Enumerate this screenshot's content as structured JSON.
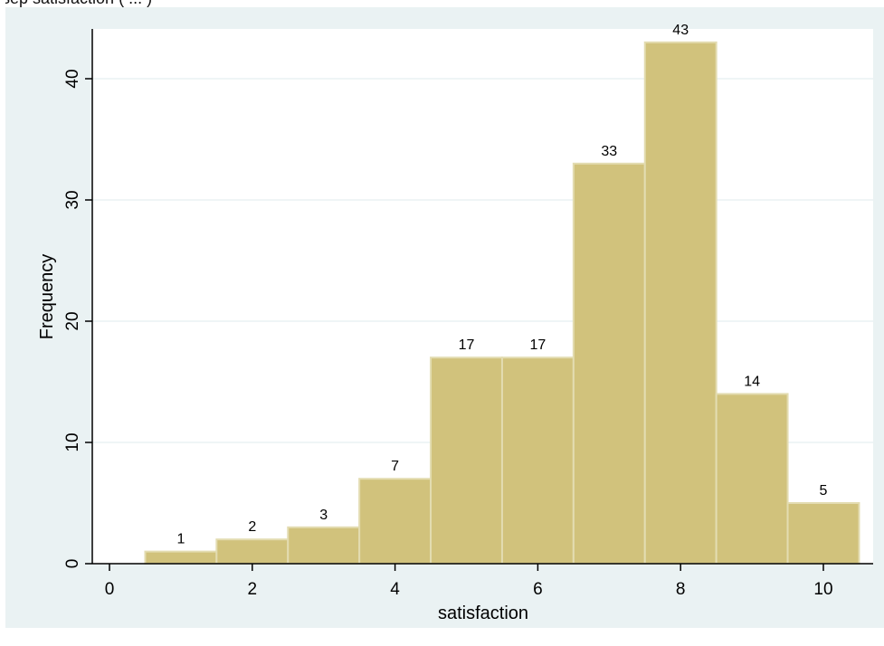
{
  "header_fragment": "sep   satisfaction (  ...  )",
  "chart_data": {
    "type": "bar",
    "title": "",
    "xlabel": "satisfaction",
    "ylabel": "Frequency",
    "xlim": [
      -0.5,
      10.5
    ],
    "ylim": [
      0,
      44
    ],
    "xticks": [
      0,
      2,
      4,
      6,
      8,
      10
    ],
    "yticks": [
      0,
      10,
      20,
      30,
      40
    ],
    "bin_width": 1,
    "bins": [
      1,
      2,
      3,
      4,
      5,
      6,
      7,
      8,
      9,
      10
    ],
    "values": [
      1,
      2,
      3,
      7,
      17,
      17,
      33,
      43,
      14,
      5
    ],
    "grid": "horizontal",
    "colors": {
      "bar_fill": "#d1c27c",
      "bar_edge": "#e3dcb1",
      "plot_bg": "#ffffff",
      "outer_bg": "#eaf2f3",
      "grid": "#eaf2f3",
      "axis": "#000000"
    }
  }
}
